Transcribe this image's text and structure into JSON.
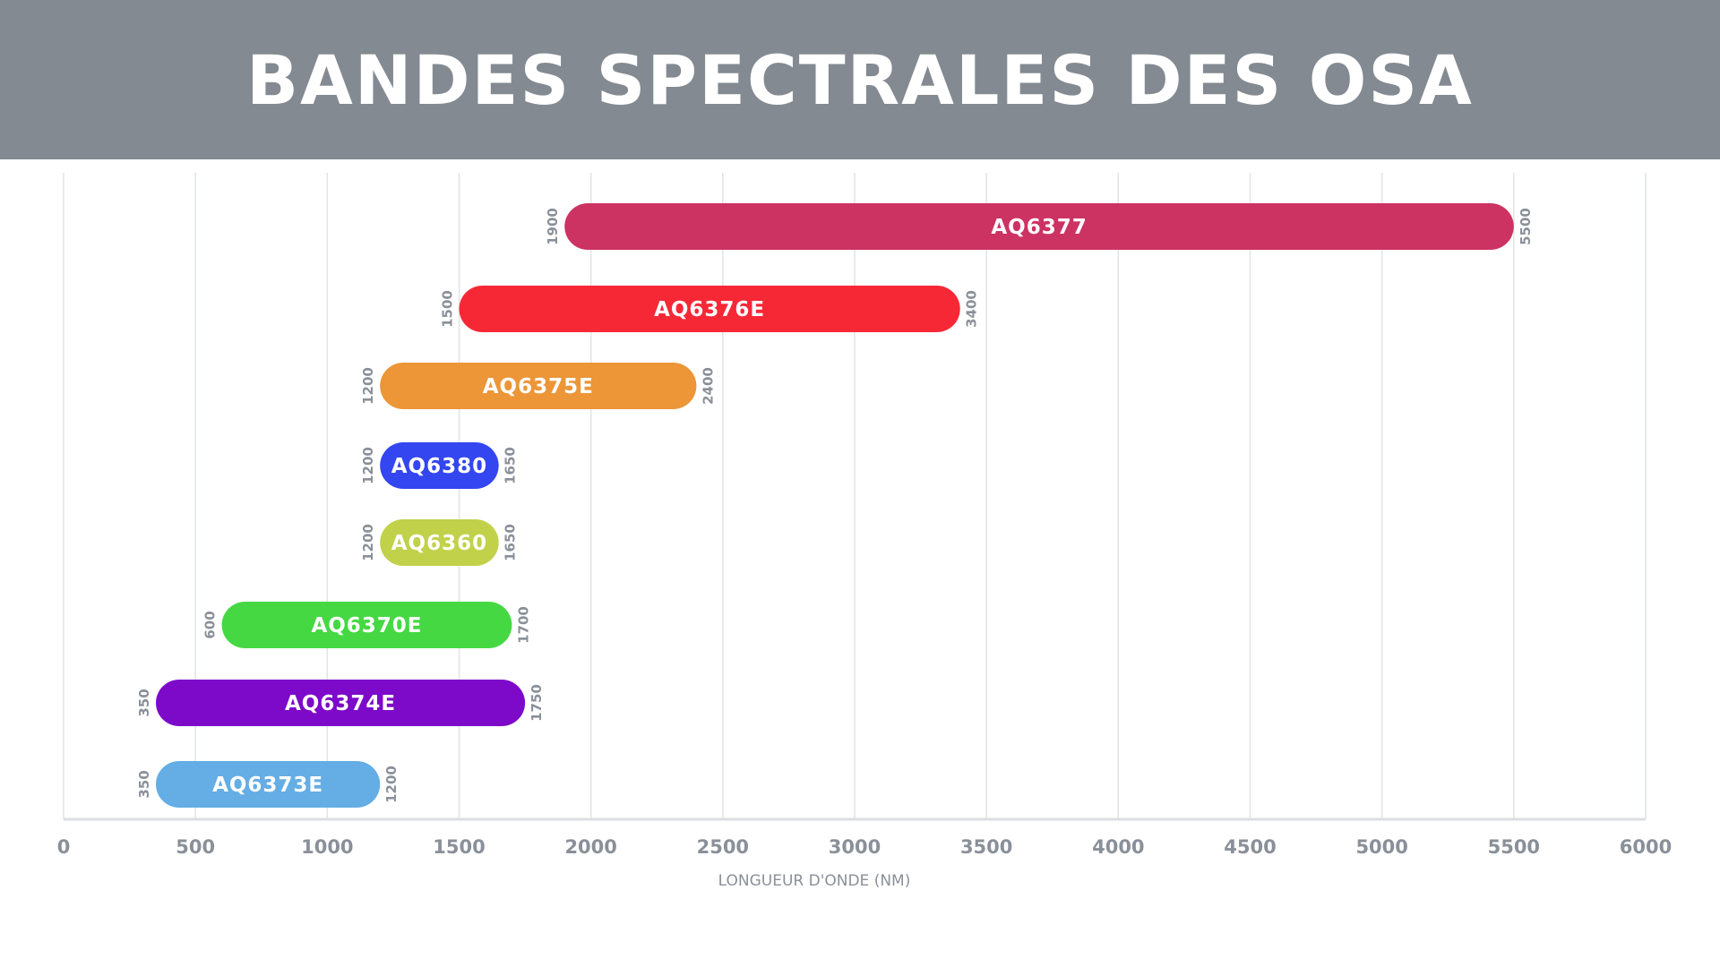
{
  "title": "BANDES SPECTRALES DES OSA",
  "chart_data": {
    "type": "bar",
    "orientation": "horizontal-range",
    "xlabel": "LONGUEUR D'ONDE (NM)",
    "xlim": [
      0,
      6000
    ],
    "xticks": [
      0,
      500,
      1000,
      1500,
      2000,
      2500,
      3000,
      3500,
      4000,
      4500,
      5000,
      5500,
      6000
    ],
    "grid": true,
    "series": [
      {
        "name": "AQ6377",
        "start": 1900,
        "end": 5500,
        "start_label": "1900",
        "end_label": "5500",
        "color": "#cc3362"
      },
      {
        "name": "AQ6376E",
        "start": 1500,
        "end": 3400,
        "start_label": "1500",
        "end_label": "3400",
        "color": "#f72836"
      },
      {
        "name": "AQ6375E",
        "start": 1200,
        "end": 2400,
        "start_label": "1200",
        "end_label": "2400",
        "color": "#ec9638"
      },
      {
        "name": "AQ6380",
        "start": 1200,
        "end": 1650,
        "start_label": "1200",
        "end_label": "1650",
        "color": "#3346f0"
      },
      {
        "name": "AQ6360",
        "start": 1200,
        "end": 1650,
        "start_label": "1200",
        "end_label": "1650",
        "color": "#c1d14a"
      },
      {
        "name": "AQ6370E",
        "start": 600,
        "end": 1700,
        "start_label": "600",
        "end_label": "1700",
        "color": "#45d843"
      },
      {
        "name": "AQ6374E",
        "start": 350,
        "end": 1750,
        "start_label": "350",
        "end_label": "1750",
        "color": "#7d09c9"
      },
      {
        "name": "AQ6373E",
        "start": 350,
        "end": 1200,
        "start_label": "350",
        "end_label": "1200",
        "color": "#64ade5"
      }
    ]
  }
}
